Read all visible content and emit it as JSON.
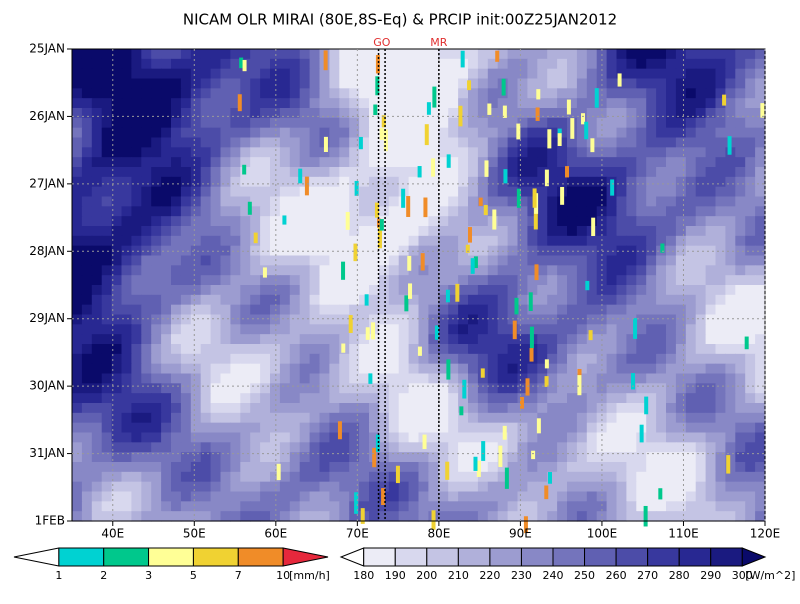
{
  "chart_data": {
    "type": "hovmoller",
    "title": "NICAM OLR MIRAI (80E,8S-Eq) & PRCIP init:00Z25JAN2012",
    "xlim": [
      35,
      120
    ],
    "xticks": [
      {
        "value": 40,
        "label": "40E"
      },
      {
        "value": 50,
        "label": "50E"
      },
      {
        "value": 60,
        "label": "60E"
      },
      {
        "value": 70,
        "label": "70E"
      },
      {
        "value": 80,
        "label": "80E"
      },
      {
        "value": 90,
        "label": "90E"
      },
      {
        "value": 100,
        "label": "100E"
      },
      {
        "value": 110,
        "label": "110E"
      },
      {
        "value": 120,
        "label": "120E"
      }
    ],
    "y_categories": [
      "25JAN",
      "26JAN",
      "27JAN",
      "28JAN",
      "29JAN",
      "30JAN",
      "31JAN",
      "1FEB"
    ],
    "grid": true,
    "markers": [
      {
        "label": "GO",
        "x": [
          72.6,
          73.4
        ]
      },
      {
        "label": "MR",
        "x": [
          80
        ]
      }
    ],
    "marker_color": "#e03030",
    "colorbars": [
      {
        "unit": "[mm/h]",
        "levels": [
          1,
          2,
          3,
          5,
          7,
          10
        ],
        "colors": [
          "#ffffff",
          "#00d2d2",
          "#00c88c",
          "#ffff96",
          "#f0d232",
          "#f08c28",
          "#e6283c"
        ]
      },
      {
        "unit": "[W/m^2]",
        "levels": [
          180,
          190,
          200,
          210,
          220,
          230,
          240,
          250,
          260,
          270,
          280,
          290,
          300
        ],
        "colors": [
          "#ffffff",
          "#ececf6",
          "#d8d8ee",
          "#c4c4e4",
          "#b0b0da",
          "#9c9cd0",
          "#8888c6",
          "#7474bc",
          "#6060b2",
          "#4c4ca8",
          "#38389e",
          "#282892",
          "#1a1a80",
          "#0a0a6a"
        ]
      }
    ]
  }
}
